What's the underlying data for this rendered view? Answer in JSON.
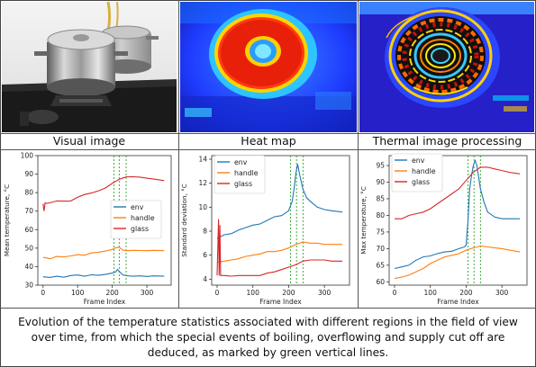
{
  "captions": {
    "visual": "Visual image",
    "heat": "Heat map",
    "thermal": "Thermal image processing"
  },
  "bottom_caption": {
    "line1": "Evolution of the temperature statistics associated with different regions in the field of view",
    "line2": "over time, from which the special events of boiling, overflowing and supply cut off are",
    "line3": "deduced, as marked by green vertical lines."
  },
  "colors": {
    "env": "#1f77b4",
    "handle": "#ff7f0e",
    "glass": "#d62728",
    "event": "#2ca02c"
  },
  "chart_data": [
    {
      "type": "line",
      "ylabel": "Mean temperature, °C",
      "xlabel": "Frame Index",
      "xlim": [
        -15,
        370
      ],
      "ylim": [
        30,
        100
      ],
      "xticks": [
        0,
        100,
        200,
        300
      ],
      "yticks": [
        30,
        40,
        50,
        60,
        70,
        80,
        90,
        100
      ],
      "legend_position": "center-right",
      "event_lines_x": [
        205,
        220,
        240
      ],
      "series": [
        {
          "name": "env",
          "color": "#1f77b4",
          "x": [
            0,
            20,
            40,
            60,
            80,
            100,
            120,
            140,
            160,
            180,
            200,
            210,
            215,
            220,
            230,
            240,
            260,
            280,
            300,
            320,
            350
          ],
          "y": [
            34.5,
            34.2,
            34.8,
            34.3,
            35.2,
            35.5,
            34.8,
            35.6,
            35.3,
            35.8,
            36.5,
            37.2,
            38.5,
            37.5,
            35.6,
            35.1,
            34.8,
            35,
            34.7,
            35,
            34.8
          ]
        },
        {
          "name": "handle",
          "color": "#ff7f0e",
          "x": [
            0,
            20,
            40,
            60,
            80,
            100,
            120,
            140,
            160,
            180,
            200,
            210,
            220,
            230,
            240,
            260,
            280,
            300,
            320,
            350
          ],
          "y": [
            45,
            44.3,
            45.5,
            45.2,
            45.8,
            46.5,
            46.2,
            47.4,
            47.8,
            48.4,
            49.3,
            50.2,
            50.5,
            49,
            48.6,
            48.8,
            48.7,
            48.6,
            48.8,
            48.6
          ]
        },
        {
          "name": "glass",
          "color": "#d62728",
          "x": [
            0,
            3,
            6,
            10,
            20,
            40,
            60,
            80,
            100,
            120,
            140,
            160,
            180,
            200,
            220,
            240,
            260,
            280,
            300,
            320,
            350
          ],
          "y": [
            74,
            70,
            74.5,
            74.2,
            74.5,
            75.5,
            75.4,
            75.5,
            77.5,
            79,
            79.8,
            81,
            82.5,
            85,
            87.2,
            88.5,
            88.6,
            88.4,
            87.8,
            87.3,
            86.5
          ]
        }
      ]
    },
    {
      "type": "line",
      "ylabel": "Standard deviation, °C",
      "xlabel": "Frame Index",
      "xlim": [
        -15,
        370
      ],
      "ylim": [
        3.5,
        14.3
      ],
      "xticks": [
        0,
        100,
        200,
        300
      ],
      "yticks": [
        4,
        6,
        8,
        10,
        12,
        14
      ],
      "legend_position": "top-left",
      "event_lines_x": [
        205,
        222,
        240
      ],
      "series": [
        {
          "name": "env",
          "color": "#1f77b4",
          "x": [
            0,
            20,
            40,
            60,
            80,
            100,
            120,
            140,
            160,
            180,
            200,
            210,
            215,
            220,
            225,
            230,
            240,
            250,
            260,
            280,
            300,
            320,
            350
          ],
          "y": [
            7.4,
            7.7,
            7.8,
            8.1,
            8.3,
            8.5,
            8.6,
            8.9,
            9.2,
            9.3,
            9.7,
            10.5,
            11.5,
            12.8,
            13.6,
            12.8,
            11.5,
            10.8,
            10.5,
            10,
            9.8,
            9.7,
            9.6
          ]
        },
        {
          "name": "handle",
          "color": "#ff7f0e",
          "x": [
            0,
            20,
            40,
            60,
            80,
            100,
            120,
            140,
            160,
            180,
            200,
            220,
            240,
            260,
            280,
            300,
            320,
            350
          ],
          "y": [
            5.4,
            5.5,
            5.6,
            5.7,
            5.9,
            6.0,
            6.1,
            6.3,
            6.3,
            6.4,
            6.6,
            6.9,
            7.1,
            7.0,
            7.0,
            6.9,
            6.9,
            6.9
          ]
        },
        {
          "name": "glass",
          "color": "#d62728",
          "x": [
            0,
            4,
            6,
            8,
            10,
            20,
            40,
            60,
            80,
            100,
            120,
            140,
            160,
            180,
            200,
            220,
            240,
            260,
            280,
            300,
            320,
            350
          ],
          "y": [
            4.3,
            9.0,
            4.3,
            8.5,
            4.3,
            4.3,
            4.25,
            4.3,
            4.3,
            4.3,
            4.3,
            4.5,
            4.6,
            4.8,
            5.0,
            5.2,
            5.5,
            5.6,
            5.6,
            5.6,
            5.5,
            5.5
          ]
        }
      ]
    },
    {
      "type": "line",
      "ylabel": "Max temperature, °C",
      "xlabel": "Frame Index",
      "xlim": [
        -15,
        370
      ],
      "ylim": [
        59,
        98
      ],
      "xticks": [
        0,
        100,
        200,
        300
      ],
      "yticks": [
        60,
        65,
        70,
        75,
        80,
        85,
        90,
        95
      ],
      "legend_position": "top-left",
      "event_lines_x": [
        205,
        222,
        240
      ],
      "series": [
        {
          "name": "env",
          "color": "#1f77b4",
          "x": [
            0,
            20,
            40,
            60,
            80,
            100,
            120,
            140,
            160,
            180,
            195,
            200,
            205,
            210,
            215,
            220,
            225,
            230,
            240,
            250,
            260,
            280,
            300,
            320,
            350
          ],
          "y": [
            64,
            64.5,
            65,
            66.5,
            67.5,
            67.8,
            68.5,
            69,
            69.2,
            70,
            70.5,
            71,
            78,
            88,
            92,
            95,
            96.5,
            95,
            88,
            84,
            81,
            79.5,
            79,
            79,
            79
          ]
        },
        {
          "name": "handle",
          "color": "#ff7f0e",
          "x": [
            0,
            20,
            40,
            60,
            80,
            100,
            120,
            140,
            160,
            180,
            200,
            220,
            240,
            260,
            280,
            300,
            320,
            350
          ],
          "y": [
            61,
            61.4,
            62,
            63,
            64,
            65.5,
            66.5,
            67.5,
            68,
            68.5,
            69.5,
            70.2,
            70.8,
            70.5,
            70.2,
            70,
            69.6,
            69
          ]
        },
        {
          "name": "glass",
          "color": "#d62728",
          "x": [
            0,
            20,
            40,
            60,
            80,
            100,
            120,
            140,
            160,
            180,
            200,
            220,
            240,
            260,
            280,
            300,
            320,
            350
          ],
          "y": [
            79,
            79,
            80,
            80.5,
            81,
            82,
            83.5,
            85,
            86.5,
            88,
            90.5,
            93,
            94.5,
            94.5,
            94,
            93.5,
            93,
            92.5
          ]
        }
      ]
    }
  ]
}
